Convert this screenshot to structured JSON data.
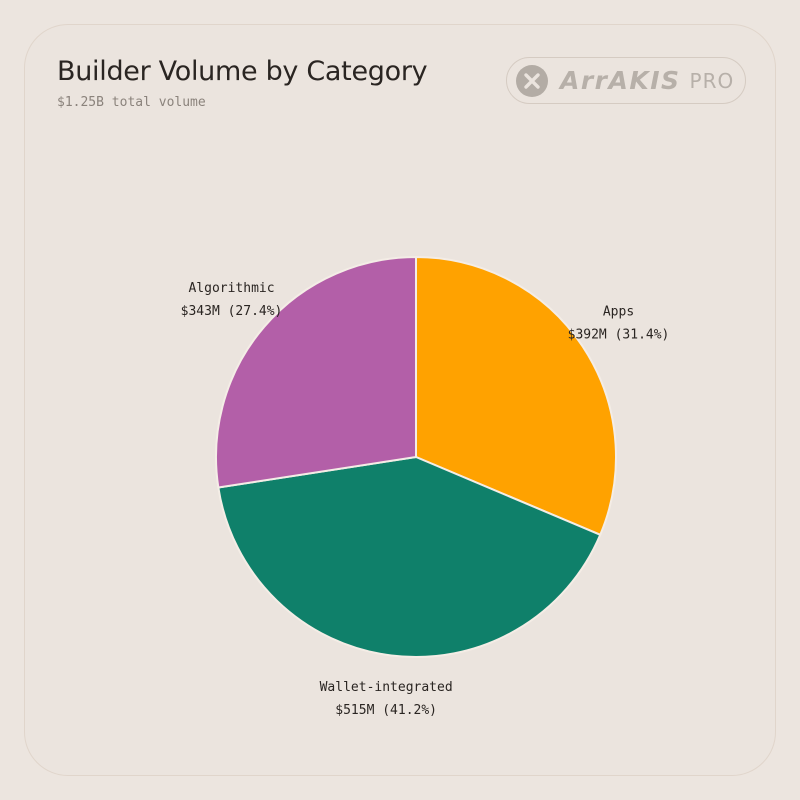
{
  "header": {
    "title": "Builder Volume by Category",
    "subtitle": "$1.25B total volume"
  },
  "logo": {
    "icon": "x-circle-icon",
    "wordmark": "ArrAKIS",
    "badge": "PRO",
    "color": "#b7b0a9"
  },
  "chart_data": {
    "type": "pie",
    "title": "Builder Volume by Category",
    "subtitle": "$1.25B total volume",
    "total_label": "$1.25B",
    "start_angle_deg": 0,
    "direction": "clockwise",
    "slices": [
      {
        "category": "Apps",
        "value": 392,
        "percent": 31.4,
        "value_label": "$392M (31.4%)",
        "color": "#ffa200"
      },
      {
        "category": "Wallet-integrated",
        "value": 515,
        "percent": 41.2,
        "value_label": "$515M (41.2%)",
        "color": "#0f806a"
      },
      {
        "category": "Algorithmic",
        "value": 343,
        "percent": 27.4,
        "value_label": "$343M (27.4%)",
        "color": "#b35fa8"
      }
    ],
    "unit": "USD millions",
    "legend": "none"
  }
}
